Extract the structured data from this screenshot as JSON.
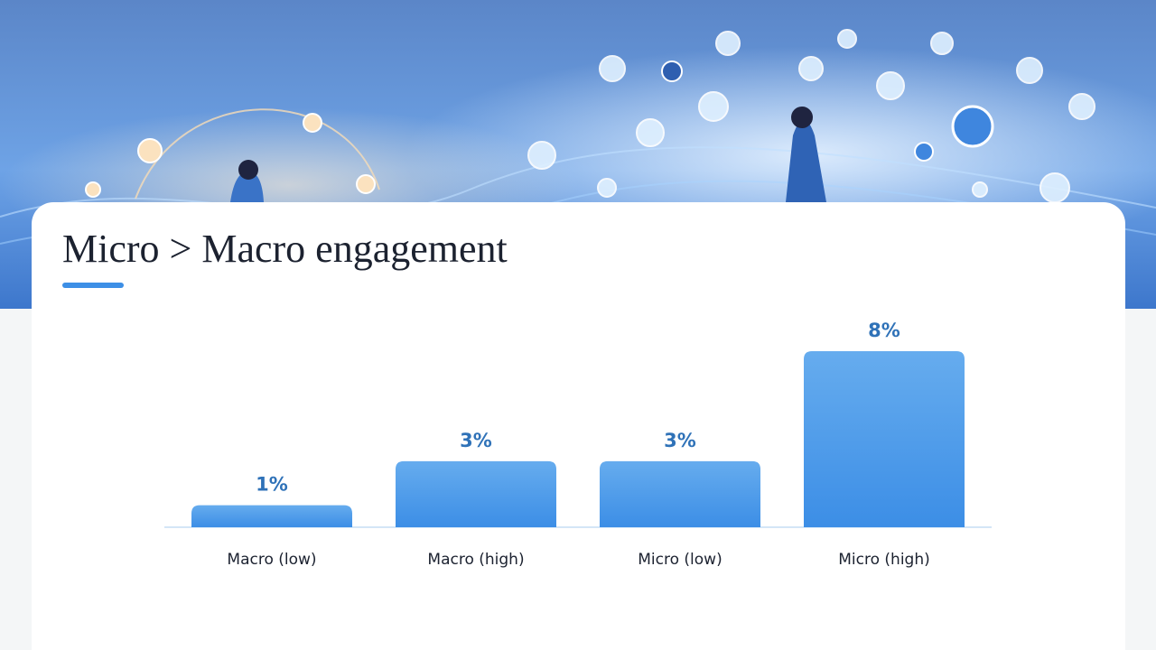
{
  "chart_data": {
    "type": "bar",
    "title": "Micro > Macro engagement",
    "categories": [
      "Macro (low)",
      "Macro (high)",
      "Micro (low)",
      "Micro (high)"
    ],
    "values": [
      1,
      3,
      3,
      8
    ],
    "value_labels": [
      "1%",
      "3%",
      "3%",
      "8%"
    ],
    "color": "#4a9aea"
  }
}
